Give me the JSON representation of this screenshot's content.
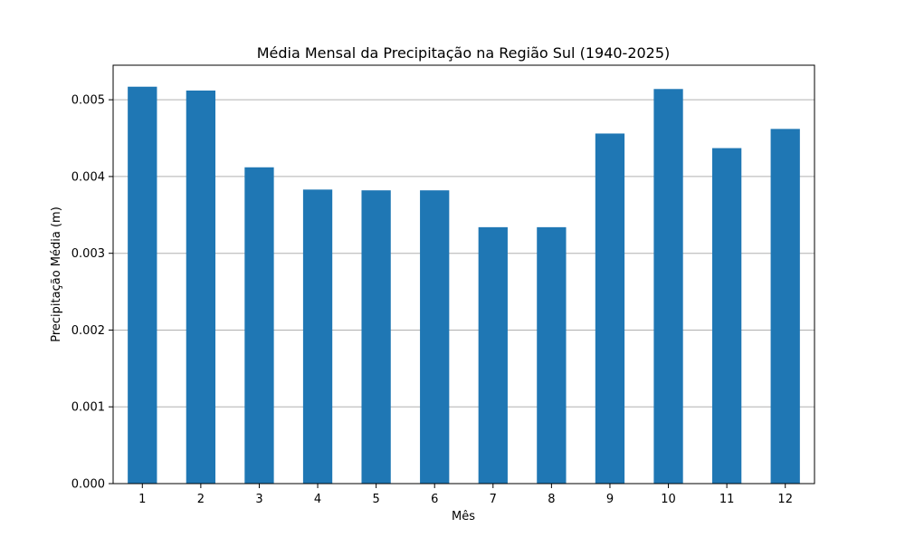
{
  "chart_data": {
    "type": "bar",
    "title": "Média Mensal da Precipitação na Região Sul (1940-2025)",
    "xlabel": "Mês",
    "ylabel": "Precipitação Média (m)",
    "categories": [
      "1",
      "2",
      "3",
      "4",
      "5",
      "6",
      "7",
      "8",
      "9",
      "10",
      "11",
      "12"
    ],
    "values": [
      0.00517,
      0.00512,
      0.00412,
      0.00383,
      0.00382,
      0.00382,
      0.00334,
      0.00334,
      0.00456,
      0.00514,
      0.00437,
      0.00462
    ],
    "ylim": [
      0,
      0.00545
    ],
    "yticks": [
      "0.000",
      "0.001",
      "0.002",
      "0.003",
      "0.004",
      "0.005"
    ],
    "ytick_values": [
      0,
      0.001,
      0.002,
      0.003,
      0.004,
      0.005
    ],
    "grid": "y-axis horizontal",
    "bar_color": "#1f77b4",
    "grid_color": "#b0b0b0"
  }
}
